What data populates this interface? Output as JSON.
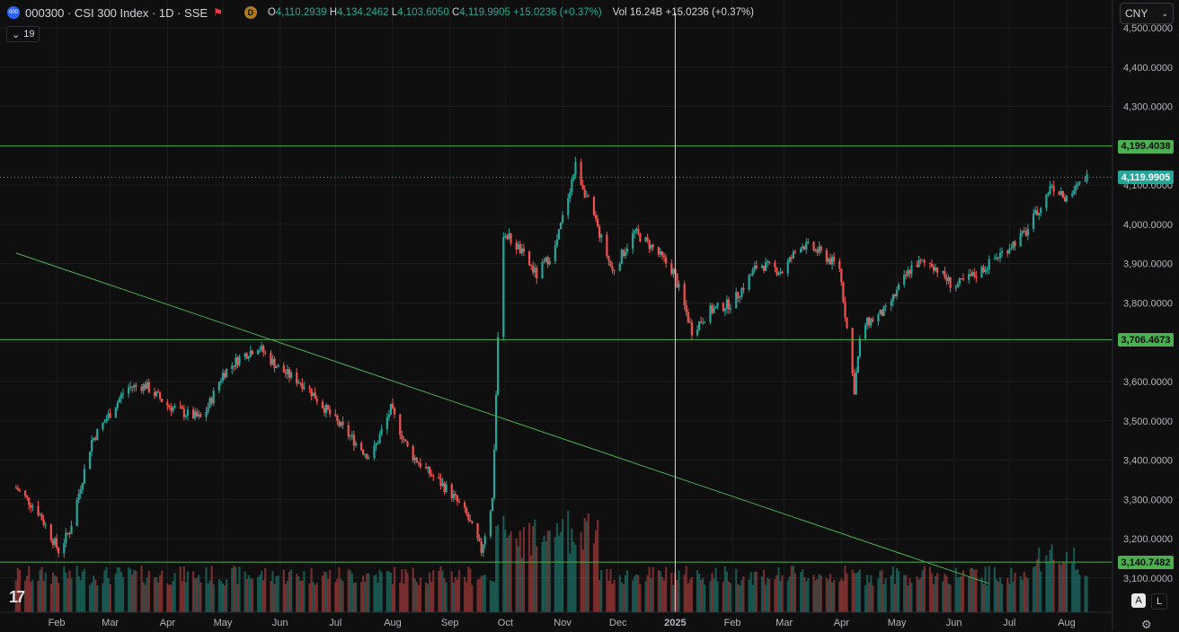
{
  "header": {
    "symbol_badge": "000",
    "title": "000300 · CSI 300 Index · 1D · SSE",
    "exchange_badge": "D",
    "open_label": "O",
    "open": "4,110.2939",
    "high_label": "H",
    "high": "4,134.2462",
    "low_label": "L",
    "low": "4,103.6050",
    "close_label": "C",
    "close": "4,119.9905",
    "change": "+15.0236 (+0.37%)",
    "vol_label": "Vol",
    "vol": "16.24B",
    "vol_change": "+15.0236 (+0.37%)"
  },
  "indicators_toggle": {
    "icon": "chevron-down-icon",
    "count": "19"
  },
  "currency": {
    "value": "CNY",
    "icon": "chevron-down-icon"
  },
  "bottom_buttons": {
    "auto": "A",
    "log": "L"
  },
  "colors": {
    "up": "#26a69a",
    "down": "#ef5350",
    "hline": "#4caf50",
    "background": "#0f0f0f",
    "grid": "#1e1e1e",
    "crosshair": "#d8d8d8"
  },
  "chart_data": {
    "type": "candlestick",
    "title": "000300 · CSI 300 Index · 1D · SSE",
    "ylim": [
      3060,
      4530
    ],
    "y_ticks": [
      "4,500.0000",
      "4,400.0000",
      "4,300.0000",
      "4,200.0000",
      "4,100.0000",
      "4,000.0000",
      "3,900.0000",
      "3,800.0000",
      "3,700.0000",
      "3,600.0000",
      "3,500.0000",
      "3,400.0000",
      "3,300.0000",
      "3,200.0000",
      "3,100.0000"
    ],
    "y_tick_values": [
      4500,
      4400,
      4300,
      4200,
      4100,
      4000,
      3900,
      3800,
      3700,
      3600,
      3500,
      3400,
      3300,
      3200,
      3100
    ],
    "x_ticks": [
      "Feb",
      "Mar",
      "Apr",
      "May",
      "Jun",
      "Jul",
      "Aug",
      "Sep",
      "Oct",
      "Nov",
      "Dec",
      "2025",
      "Feb",
      "Mar",
      "Apr",
      "May",
      "Jun",
      "Jul",
      "Aug"
    ],
    "x_tick_dates": [
      "2024-02-01",
      "2024-03-01",
      "2024-04-01",
      "2024-05-01",
      "2024-06-01",
      "2024-07-01",
      "2024-08-01",
      "2024-09-01",
      "2024-10-01",
      "2024-11-01",
      "2024-12-01",
      "2025-01-01",
      "2025-02-01",
      "2025-03-01",
      "2025-04-01",
      "2025-05-01",
      "2025-06-01",
      "2025-07-01",
      "2025-08-01"
    ],
    "x_range": [
      "2024-01-10",
      "2025-08-12"
    ],
    "horizontal_lines": [
      {
        "price": 4199.4038,
        "label": "4,199.4038"
      },
      {
        "price": 3706.4673,
        "label": "3,706.4673"
      },
      {
        "price": 3140.7482,
        "label": "3,140.7482"
      }
    ],
    "last_price": {
      "price": 4119.9905,
      "label": "4,119.9905"
    },
    "trendline": {
      "from": {
        "date": "2024-01-10",
        "price": 3927
      },
      "to": {
        "date": "2025-06-20",
        "price": 3086
      }
    },
    "crosshair_date": "2025-01-01",
    "price_path": [
      [
        "2024-01-10",
        3330
      ],
      [
        "2024-01-22",
        3270
      ],
      [
        "2024-02-02",
        3170
      ],
      [
        "2024-02-08",
        3220
      ],
      [
        "2024-02-20",
        3450
      ],
      [
        "2024-03-01",
        3520
      ],
      [
        "2024-03-10",
        3585
      ],
      [
        "2024-03-20",
        3590
      ],
      [
        "2024-04-01",
        3540
      ],
      [
        "2024-04-10",
        3520
      ],
      [
        "2024-04-20",
        3505
      ],
      [
        "2024-05-01",
        3620
      ],
      [
        "2024-05-10",
        3660
      ],
      [
        "2024-05-20",
        3690
      ],
      [
        "2024-06-01",
        3630
      ],
      [
        "2024-06-15",
        3590
      ],
      [
        "2024-07-01",
        3500
      ],
      [
        "2024-07-10",
        3455
      ],
      [
        "2024-07-20",
        3405
      ],
      [
        "2024-07-31",
        3530
      ],
      [
        "2024-08-10",
        3420
      ],
      [
        "2024-08-20",
        3370
      ],
      [
        "2024-09-01",
        3320
      ],
      [
        "2024-09-10",
        3260
      ],
      [
        "2024-09-18",
        3170
      ],
      [
        "2024-09-24",
        3300
      ],
      [
        "2024-09-27",
        3700
      ],
      [
        "2024-09-30",
        3980
      ],
      [
        "2024-10-08",
        3940
      ],
      [
        "2024-10-18",
        3870
      ],
      [
        "2024-10-28",
        3940
      ],
      [
        "2024-11-08",
        4150
      ],
      [
        "2024-11-20",
        3990
      ],
      [
        "2024-11-28",
        3880
      ],
      [
        "2024-12-10",
        3980
      ],
      [
        "2024-12-20",
        3940
      ],
      [
        "2024-12-31",
        3880
      ],
      [
        "2025-01-10",
        3730
      ],
      [
        "2025-01-20",
        3780
      ],
      [
        "2025-02-01",
        3800
      ],
      [
        "2025-02-15",
        3900
      ],
      [
        "2025-02-28",
        3880
      ],
      [
        "2025-03-10",
        3950
      ],
      [
        "2025-03-20",
        3930
      ],
      [
        "2025-03-31",
        3890
      ],
      [
        "2025-04-08",
        3580
      ],
      [
        "2025-04-12",
        3740
      ],
      [
        "2025-04-25",
        3780
      ],
      [
        "2025-05-10",
        3900
      ],
      [
        "2025-05-20",
        3900
      ],
      [
        "2025-06-01",
        3840
      ],
      [
        "2025-06-15",
        3880
      ],
      [
        "2025-06-25",
        3920
      ],
      [
        "2025-07-10",
        3980
      ],
      [
        "2025-07-24",
        4100
      ],
      [
        "2025-08-01",
        4060
      ],
      [
        "2025-08-11",
        4120
      ]
    ],
    "volume_max_fraction_note": ""
  }
}
